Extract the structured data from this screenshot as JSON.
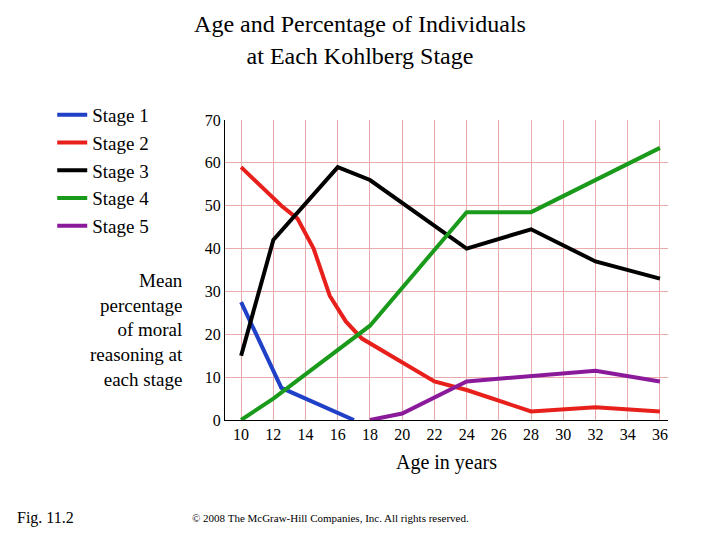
{
  "chart_data": {
    "type": "line",
    "title": [
      "Age and Percentage of Individuals",
      "at Each Kohlberg Stage"
    ],
    "xlabel": "Age in years",
    "ylabel": [
      "Mean",
      "percentage",
      "of moral",
      "reasoning at",
      "each stage"
    ],
    "annotations": [
      "Fig. 11.2",
      "© 2008 The McGraw-Hill Companies, Inc. All rights reserved."
    ],
    "series": [
      {
        "name": "Stage 1",
        "color": "#2040c8",
        "x": [
          10,
          12.5,
          17
        ],
        "values": [
          27.5,
          7.5,
          0
        ]
      },
      {
        "name": "Stage 2",
        "color": "#e8201c",
        "x": [
          10,
          12.5,
          13.5,
          14.5,
          15.5,
          16.5,
          17.5,
          22,
          24,
          28,
          32,
          36
        ],
        "values": [
          59,
          50,
          47,
          40,
          29,
          23,
          19,
          9,
          7,
          2,
          3,
          2
        ]
      },
      {
        "name": "Stage 3",
        "color": "#000000",
        "x": [
          10,
          12,
          16,
          18,
          24,
          28,
          32,
          36
        ],
        "values": [
          15,
          42,
          59,
          56,
          40,
          44.5,
          37,
          33
        ]
      },
      {
        "name": "Stage 4",
        "color": "#1a9a1a",
        "x": [
          10,
          12,
          18,
          24,
          28,
          36
        ],
        "values": [
          0,
          5,
          22,
          48.5,
          48.5,
          63.5
        ]
      },
      {
        "name": "Stage 5",
        "color": "#8b1a9b",
        "x": [
          18,
          20,
          24,
          32,
          36
        ],
        "values": [
          0,
          1.5,
          9,
          11.5,
          9
        ]
      }
    ],
    "xlim": [
      9,
      36.5
    ],
    "xticks": [
      10,
      12,
      14,
      16,
      18,
      20,
      22,
      24,
      26,
      28,
      30,
      32,
      34,
      36
    ],
    "ylim": [
      0,
      70
    ],
    "yticks": [
      0,
      10,
      20,
      30,
      40,
      50,
      60,
      70
    ],
    "grid": true,
    "legend": "upper left"
  }
}
